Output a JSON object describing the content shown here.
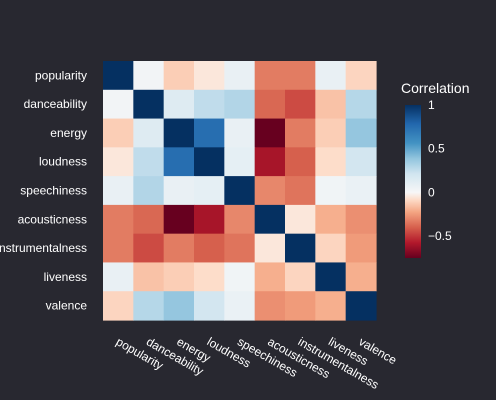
{
  "chart_data": {
    "type": "heatmap",
    "title": "",
    "xlabel": "",
    "ylabel": "",
    "rows": [
      "popularity",
      "danceability",
      "energy",
      "loudness",
      "speechiness",
      "acousticness",
      "instrumentalness",
      "liveness",
      "valence"
    ],
    "columns": [
      "popularity",
      "danceability",
      "energy",
      "loudness",
      "speechiness",
      "acousticness",
      "instrumentalness",
      "liveness",
      "valence"
    ],
    "values": [
      [
        1.0,
        0.03,
        -0.12,
        -0.05,
        0.08,
        -0.33,
        -0.33,
        0.08,
        -0.1
      ],
      [
        0.03,
        1.0,
        0.14,
        0.26,
        0.3,
        -0.38,
        -0.45,
        -0.15,
        0.29
      ],
      [
        -0.12,
        0.14,
        1.0,
        0.75,
        0.08,
        -0.75,
        -0.33,
        -0.12,
        0.38
      ],
      [
        -0.05,
        0.26,
        0.75,
        1.0,
        0.1,
        -0.6,
        -0.4,
        -0.08,
        0.2
      ],
      [
        0.08,
        0.3,
        0.08,
        0.1,
        1.0,
        -0.3,
        -0.35,
        0.04,
        0.07
      ],
      [
        -0.33,
        -0.38,
        -0.75,
        -0.6,
        -0.3,
        1.0,
        -0.05,
        -0.2,
        -0.28
      ],
      [
        -0.33,
        -0.45,
        -0.33,
        -0.4,
        -0.35,
        -0.05,
        1.0,
        -0.1,
        -0.25
      ],
      [
        0.08,
        -0.15,
        -0.12,
        -0.08,
        0.04,
        -0.2,
        -0.1,
        1.0,
        -0.2
      ],
      [
        -0.1,
        0.29,
        0.38,
        0.2,
        0.07,
        -0.28,
        -0.25,
        -0.2,
        1.0
      ]
    ],
    "colorbar": {
      "title": "Correlation",
      "range": [
        -0.75,
        1.0
      ],
      "ticks": [
        1,
        0.5,
        0,
        -0.5
      ],
      "tick_labels": [
        "1",
        "0.5",
        "0",
        "−0.5"
      ],
      "colorscale": "RdBu"
    },
    "grid": false
  }
}
